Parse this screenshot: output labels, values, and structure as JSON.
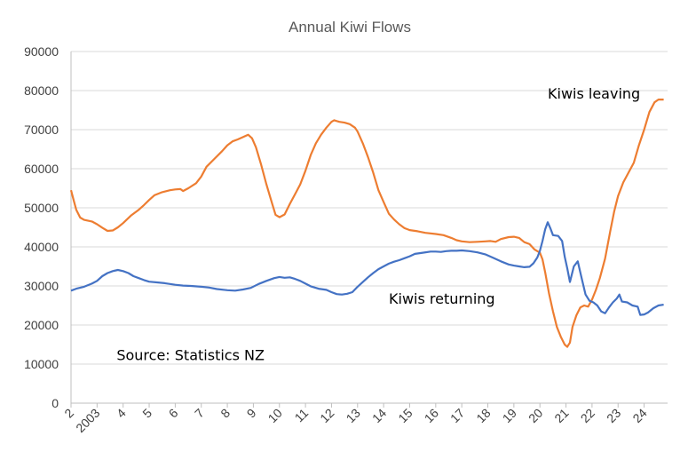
{
  "chart_data": {
    "type": "line",
    "title": "Annual Kiwi Flows",
    "xlabel": "",
    "ylabel": "",
    "ylim": [
      0,
      90000
    ],
    "yticks": [
      0,
      10000,
      20000,
      30000,
      40000,
      50000,
      60000,
      70000,
      80000,
      90000
    ],
    "xlim": [
      2002,
      2024.9
    ],
    "x_tick_labels": [
      {
        "x": 2002,
        "label": "2"
      },
      {
        "x": 2003,
        "label": "2003"
      },
      {
        "x": 2004,
        "label": "4"
      },
      {
        "x": 2005,
        "label": "5"
      },
      {
        "x": 2006,
        "label": "6"
      },
      {
        "x": 2007,
        "label": "7"
      },
      {
        "x": 2008,
        "label": "8"
      },
      {
        "x": 2009,
        "label": "9"
      },
      {
        "x": 2010,
        "label": "10"
      },
      {
        "x": 2011,
        "label": "11"
      },
      {
        "x": 2012,
        "label": "12"
      },
      {
        "x": 2013,
        "label": "13"
      },
      {
        "x": 2014,
        "label": "14"
      },
      {
        "x": 2015,
        "label": "15"
      },
      {
        "x": 2016,
        "label": "16"
      },
      {
        "x": 2017,
        "label": "17"
      },
      {
        "x": 2018,
        "label": "18"
      },
      {
        "x": 2019,
        "label": "19"
      },
      {
        "x": 2020,
        "label": "20"
      },
      {
        "x": 2021,
        "label": "21"
      },
      {
        "x": 2022,
        "label": "22"
      },
      {
        "x": 2023,
        "label": "23"
      },
      {
        "x": 2024,
        "label": "24"
      }
    ],
    "grid": true,
    "legend": "none",
    "annotations": [
      {
        "text": "Kiwis leaving",
        "x": 2020.3,
        "y": 78000
      },
      {
        "text": "Kiwis returning",
        "x": 2014.2,
        "y": 25500
      },
      {
        "text": "Source: Statistics NZ",
        "x": 2003.75,
        "y": 11000
      }
    ],
    "series": [
      {
        "name": "Kiwis leaving",
        "color": "#ed7d31",
        "points": [
          [
            2002.0,
            54500
          ],
          [
            2002.1,
            52000
          ],
          [
            2002.2,
            49500
          ],
          [
            2002.35,
            47500
          ],
          [
            2002.5,
            46900
          ],
          [
            2002.8,
            46500
          ],
          [
            2003.0,
            45800
          ],
          [
            2003.2,
            44900
          ],
          [
            2003.4,
            44100
          ],
          [
            2003.6,
            44200
          ],
          [
            2003.8,
            45000
          ],
          [
            2004.0,
            46100
          ],
          [
            2004.3,
            48000
          ],
          [
            2004.6,
            49500
          ],
          [
            2004.8,
            50700
          ],
          [
            2005.0,
            52000
          ],
          [
            2005.2,
            53200
          ],
          [
            2005.5,
            54000
          ],
          [
            2005.8,
            54500
          ],
          [
            2006.0,
            54700
          ],
          [
            2006.2,
            54800
          ],
          [
            2006.3,
            54300
          ],
          [
            2006.5,
            55000
          ],
          [
            2006.8,
            56300
          ],
          [
            2007.0,
            58000
          ],
          [
            2007.2,
            60500
          ],
          [
            2007.5,
            62500
          ],
          [
            2007.8,
            64500
          ],
          [
            2008.0,
            66000
          ],
          [
            2008.2,
            67000
          ],
          [
            2008.4,
            67500
          ],
          [
            2008.6,
            68100
          ],
          [
            2008.8,
            68700
          ],
          [
            2008.95,
            67800
          ],
          [
            2009.1,
            65500
          ],
          [
            2009.3,
            61000
          ],
          [
            2009.5,
            56000
          ],
          [
            2009.7,
            51500
          ],
          [
            2009.85,
            48200
          ],
          [
            2010.0,
            47600
          ],
          [
            2010.2,
            48300
          ],
          [
            2010.4,
            51000
          ],
          [
            2010.6,
            53500
          ],
          [
            2010.8,
            56000
          ],
          [
            2011.0,
            59500
          ],
          [
            2011.2,
            63500
          ],
          [
            2011.4,
            66500
          ],
          [
            2011.6,
            68700
          ],
          [
            2011.8,
            70500
          ],
          [
            2012.0,
            72000
          ],
          [
            2012.1,
            72400
          ],
          [
            2012.3,
            72000
          ],
          [
            2012.5,
            71800
          ],
          [
            2012.7,
            71400
          ],
          [
            2012.9,
            70500
          ],
          [
            2013.0,
            69500
          ],
          [
            2013.2,
            66500
          ],
          [
            2013.4,
            63000
          ],
          [
            2013.6,
            59000
          ],
          [
            2013.8,
            54500
          ],
          [
            2014.0,
            51500
          ],
          [
            2014.2,
            48500
          ],
          [
            2014.4,
            47000
          ],
          [
            2014.6,
            45800
          ],
          [
            2014.8,
            44800
          ],
          [
            2015.0,
            44300
          ],
          [
            2015.3,
            44000
          ],
          [
            2015.6,
            43600
          ],
          [
            2016.0,
            43300
          ],
          [
            2016.3,
            43000
          ],
          [
            2016.6,
            42300
          ],
          [
            2016.8,
            41700
          ],
          [
            2017.0,
            41400
          ],
          [
            2017.3,
            41200
          ],
          [
            2017.6,
            41300
          ],
          [
            2017.9,
            41400
          ],
          [
            2018.1,
            41500
          ],
          [
            2018.3,
            41300
          ],
          [
            2018.5,
            42000
          ],
          [
            2018.8,
            42500
          ],
          [
            2019.0,
            42600
          ],
          [
            2019.2,
            42300
          ],
          [
            2019.4,
            41200
          ],
          [
            2019.6,
            40700
          ],
          [
            2019.8,
            39300
          ],
          [
            2020.0,
            38500
          ],
          [
            2020.1,
            36800
          ],
          [
            2020.2,
            33500
          ],
          [
            2020.35,
            28000
          ],
          [
            2020.5,
            23500
          ],
          [
            2020.65,
            19500
          ],
          [
            2020.8,
            17000
          ],
          [
            2020.95,
            15000
          ],
          [
            2021.05,
            14400
          ],
          [
            2021.15,
            15500
          ],
          [
            2021.25,
            19500
          ],
          [
            2021.4,
            22500
          ],
          [
            2021.55,
            24500
          ],
          [
            2021.7,
            25000
          ],
          [
            2021.85,
            24700
          ],
          [
            2022.0,
            26500
          ],
          [
            2022.15,
            29000
          ],
          [
            2022.3,
            32000
          ],
          [
            2022.5,
            37000
          ],
          [
            2022.7,
            44000
          ],
          [
            2022.85,
            49000
          ],
          [
            2023.0,
            53000
          ],
          [
            2023.2,
            56500
          ],
          [
            2023.4,
            59000
          ],
          [
            2023.6,
            61500
          ],
          [
            2023.8,
            66000
          ],
          [
            2024.0,
            70000
          ],
          [
            2024.2,
            74500
          ],
          [
            2024.4,
            77000
          ],
          [
            2024.55,
            77700
          ],
          [
            2024.75,
            77700
          ]
        ]
      },
      {
        "name": "Kiwis returning",
        "color": "#4472c4",
        "points": [
          [
            2002.0,
            28800
          ],
          [
            2002.2,
            29300
          ],
          [
            2002.5,
            29800
          ],
          [
            2002.8,
            30600
          ],
          [
            2003.0,
            31300
          ],
          [
            2003.2,
            32500
          ],
          [
            2003.4,
            33300
          ],
          [
            2003.6,
            33800
          ],
          [
            2003.8,
            34100
          ],
          [
            2004.0,
            33800
          ],
          [
            2004.2,
            33300
          ],
          [
            2004.4,
            32500
          ],
          [
            2004.6,
            32000
          ],
          [
            2004.8,
            31500
          ],
          [
            2005.0,
            31100
          ],
          [
            2005.3,
            30900
          ],
          [
            2005.6,
            30700
          ],
          [
            2006.0,
            30300
          ],
          [
            2006.3,
            30100
          ],
          [
            2006.6,
            30000
          ],
          [
            2007.0,
            29800
          ],
          [
            2007.3,
            29600
          ],
          [
            2007.6,
            29200
          ],
          [
            2008.0,
            28900
          ],
          [
            2008.3,
            28800
          ],
          [
            2008.6,
            29100
          ],
          [
            2008.9,
            29500
          ],
          [
            2009.2,
            30500
          ],
          [
            2009.5,
            31300
          ],
          [
            2009.8,
            32000
          ],
          [
            2010.0,
            32300
          ],
          [
            2010.2,
            32100
          ],
          [
            2010.4,
            32200
          ],
          [
            2010.6,
            31800
          ],
          [
            2010.8,
            31300
          ],
          [
            2011.0,
            30600
          ],
          [
            2011.2,
            29900
          ],
          [
            2011.5,
            29300
          ],
          [
            2011.8,
            29000
          ],
          [
            2012.0,
            28400
          ],
          [
            2012.2,
            27900
          ],
          [
            2012.4,
            27800
          ],
          [
            2012.6,
            28000
          ],
          [
            2012.8,
            28400
          ],
          [
            2013.0,
            29800
          ],
          [
            2013.2,
            31000
          ],
          [
            2013.4,
            32200
          ],
          [
            2013.6,
            33300
          ],
          [
            2013.8,
            34300
          ],
          [
            2014.0,
            35000
          ],
          [
            2014.2,
            35700
          ],
          [
            2014.4,
            36200
          ],
          [
            2014.6,
            36600
          ],
          [
            2014.8,
            37100
          ],
          [
            2015.0,
            37600
          ],
          [
            2015.2,
            38200
          ],
          [
            2015.5,
            38500
          ],
          [
            2015.8,
            38800
          ],
          [
            2016.0,
            38800
          ],
          [
            2016.2,
            38700
          ],
          [
            2016.4,
            38900
          ],
          [
            2016.6,
            39000
          ],
          [
            2016.8,
            39000
          ],
          [
            2017.0,
            39100
          ],
          [
            2017.3,
            38900
          ],
          [
            2017.6,
            38600
          ],
          [
            2017.9,
            38100
          ],
          [
            2018.2,
            37200
          ],
          [
            2018.5,
            36300
          ],
          [
            2018.8,
            35500
          ],
          [
            2019.0,
            35200
          ],
          [
            2019.2,
            35000
          ],
          [
            2019.4,
            34800
          ],
          [
            2019.6,
            34900
          ],
          [
            2019.75,
            35800
          ],
          [
            2019.9,
            37300
          ],
          [
            2020.0,
            39000
          ],
          [
            2020.1,
            41500
          ],
          [
            2020.2,
            44500
          ],
          [
            2020.3,
            46300
          ],
          [
            2020.4,
            44800
          ],
          [
            2020.5,
            43000
          ],
          [
            2020.7,
            42800
          ],
          [
            2020.85,
            41500
          ],
          [
            2020.95,
            37500
          ],
          [
            2021.05,
            34500
          ],
          [
            2021.15,
            31000
          ],
          [
            2021.3,
            35000
          ],
          [
            2021.45,
            36300
          ],
          [
            2021.6,
            32000
          ],
          [
            2021.75,
            27800
          ],
          [
            2021.9,
            26200
          ],
          [
            2022.05,
            25800
          ],
          [
            2022.2,
            25000
          ],
          [
            2022.35,
            23500
          ],
          [
            2022.5,
            23000
          ],
          [
            2022.65,
            24500
          ],
          [
            2022.8,
            25800
          ],
          [
            2022.95,
            26800
          ],
          [
            2023.05,
            27800
          ],
          [
            2023.15,
            26000
          ],
          [
            2023.35,
            25800
          ],
          [
            2023.55,
            25000
          ],
          [
            2023.75,
            24700
          ],
          [
            2023.85,
            22600
          ],
          [
            2024.0,
            22700
          ],
          [
            2024.15,
            23200
          ],
          [
            2024.35,
            24300
          ],
          [
            2024.55,
            25000
          ],
          [
            2024.75,
            25200
          ]
        ]
      }
    ]
  }
}
